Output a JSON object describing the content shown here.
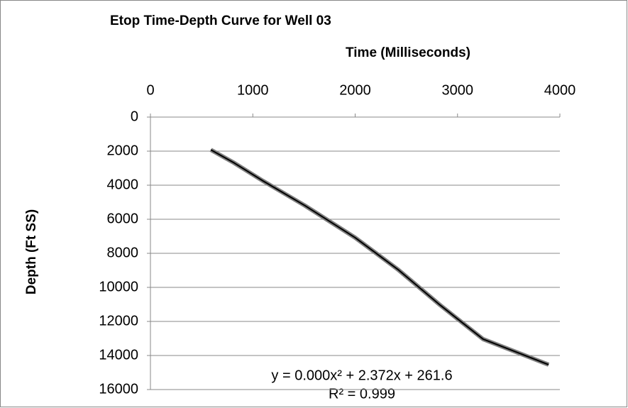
{
  "chart_data": {
    "type": "line",
    "title": "Etop Time-Depth Curve for Well 03",
    "x_label": "Time (Milliseconds)",
    "y_label": "Depth (Ft SS)",
    "annotations": [
      "y = 0.000x² + 2.372x + 261.6",
      "R² = 0.999"
    ],
    "x": [
      590,
      820,
      1100,
      1510,
      2000,
      2420,
      2830,
      3250,
      3890
    ],
    "series": [
      {
        "color": "#808080",
        "values": [
          1920,
          2700,
          3750,
          5200,
          7080,
          8960,
          11040,
          13040,
          14540
        ]
      }
    ],
    "trendline_color": "#000000",
    "xlim": [
      0,
      4000
    ],
    "xticks": [
      0,
      1000,
      2000,
      3000,
      4000
    ],
    "ylim": [
      0,
      16000
    ],
    "yticks": [
      0,
      2000,
      4000,
      6000,
      8000,
      10000,
      12000,
      14000,
      16000
    ],
    "y_reversed": true,
    "x_axis_position": "top",
    "grid": true
  }
}
